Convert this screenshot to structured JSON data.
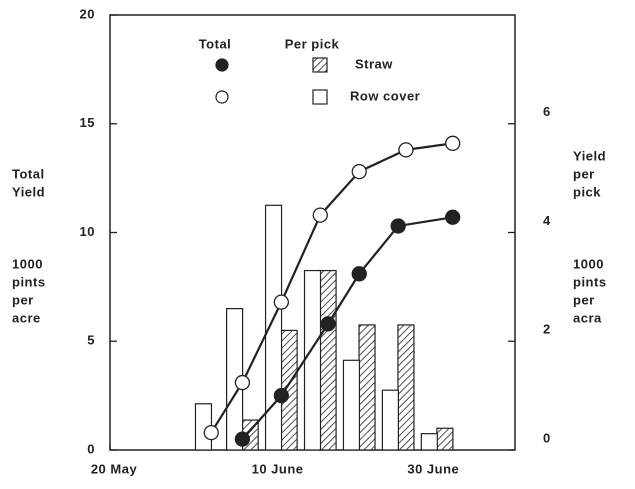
{
  "chart_data": {
    "type": "bar-line",
    "y_label": [
      "Total",
      "Yield"
    ],
    "y_unit": [
      "1000",
      "pints",
      "per",
      "acre"
    ],
    "y2_label": [
      "Yield",
      "per",
      "pick"
    ],
    "y2_unit": [
      "1000",
      "pints",
      "per",
      "acra"
    ],
    "legend_total": "Total",
    "legend_per_pick": "Per pick",
    "xlim": [
      0,
      52
    ],
    "xticks": [
      {
        "value": 0,
        "label": "20 May"
      },
      {
        "value": 21,
        "label": "10 June"
      },
      {
        "value": 41,
        "label": "30 June"
      }
    ],
    "ylim": [
      0,
      20
    ],
    "yticks": [
      0,
      5,
      10,
      15,
      20
    ],
    "y2lim": [
      0,
      8
    ],
    "y2ticks": [
      0,
      2,
      4,
      6
    ],
    "series": [
      {
        "name": "Straw",
        "type": "line",
        "marker": "filled",
        "color": "#222",
        "x": [
          17,
          22,
          28,
          32,
          37,
          44
        ],
        "values": [
          0.5,
          2.5,
          5.8,
          8.1,
          10.3,
          10.7
        ]
      },
      {
        "name": "Row cover",
        "type": "line",
        "marker": "open",
        "color": "#222",
        "x": [
          13,
          17,
          22,
          27,
          32,
          38,
          44
        ],
        "values": [
          0.8,
          3.1,
          6.8,
          10.8,
          12.8,
          13.8,
          14.1
        ]
      },
      {
        "name": "Straw",
        "type": "bar",
        "axis": "y2",
        "pattern": "hatched",
        "color": "#222",
        "x": [
          18,
          23,
          28,
          33,
          38,
          43
        ],
        "values": [
          0.55,
          2.2,
          3.3,
          2.3,
          2.3,
          0.4
        ]
      },
      {
        "name": "Row cover",
        "type": "bar",
        "axis": "y2",
        "pattern": "open",
        "color": "#222",
        "x": [
          12,
          16,
          21,
          26,
          31,
          36,
          41
        ],
        "values": [
          0.85,
          2.6,
          4.5,
          3.3,
          1.65,
          1.1,
          0.3
        ]
      }
    ]
  }
}
